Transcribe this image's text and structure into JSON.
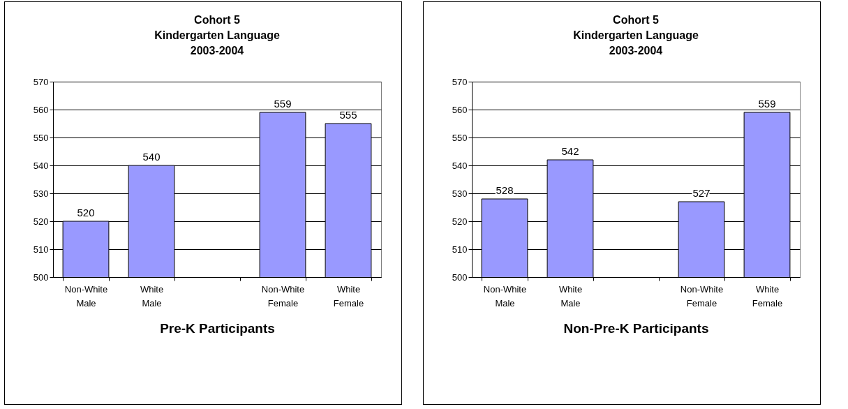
{
  "chart_data": [
    {
      "type": "bar",
      "title": "Cohort 5\nKindergarten Language\n2003-2004",
      "xlabel": "Pre-K Participants",
      "categories": [
        "Non-White Male",
        "White Male",
        null,
        "Non-White Female",
        "White Female"
      ],
      "values": [
        520,
        540,
        null,
        559,
        555
      ],
      "color": "#9999ff",
      "ylim": [
        500,
        570
      ],
      "yticks": [
        500,
        510,
        520,
        530,
        540,
        550,
        560,
        570
      ],
      "grid": "y",
      "data_labels": true
    },
    {
      "type": "bar",
      "title": "Cohort 5\nKindergarten Language\n2003-2004",
      "xlabel": "Non-Pre-K Participants",
      "categories": [
        "Non-White Male",
        "White Male",
        null,
        "Non-White Female",
        "White Female"
      ],
      "values": [
        528,
        542,
        null,
        527,
        559
      ],
      "color": "#9999ff",
      "ylim": [
        500,
        570
      ],
      "yticks": [
        500,
        510,
        520,
        530,
        540,
        550,
        560,
        570
      ],
      "grid": "y",
      "data_labels": true
    }
  ]
}
